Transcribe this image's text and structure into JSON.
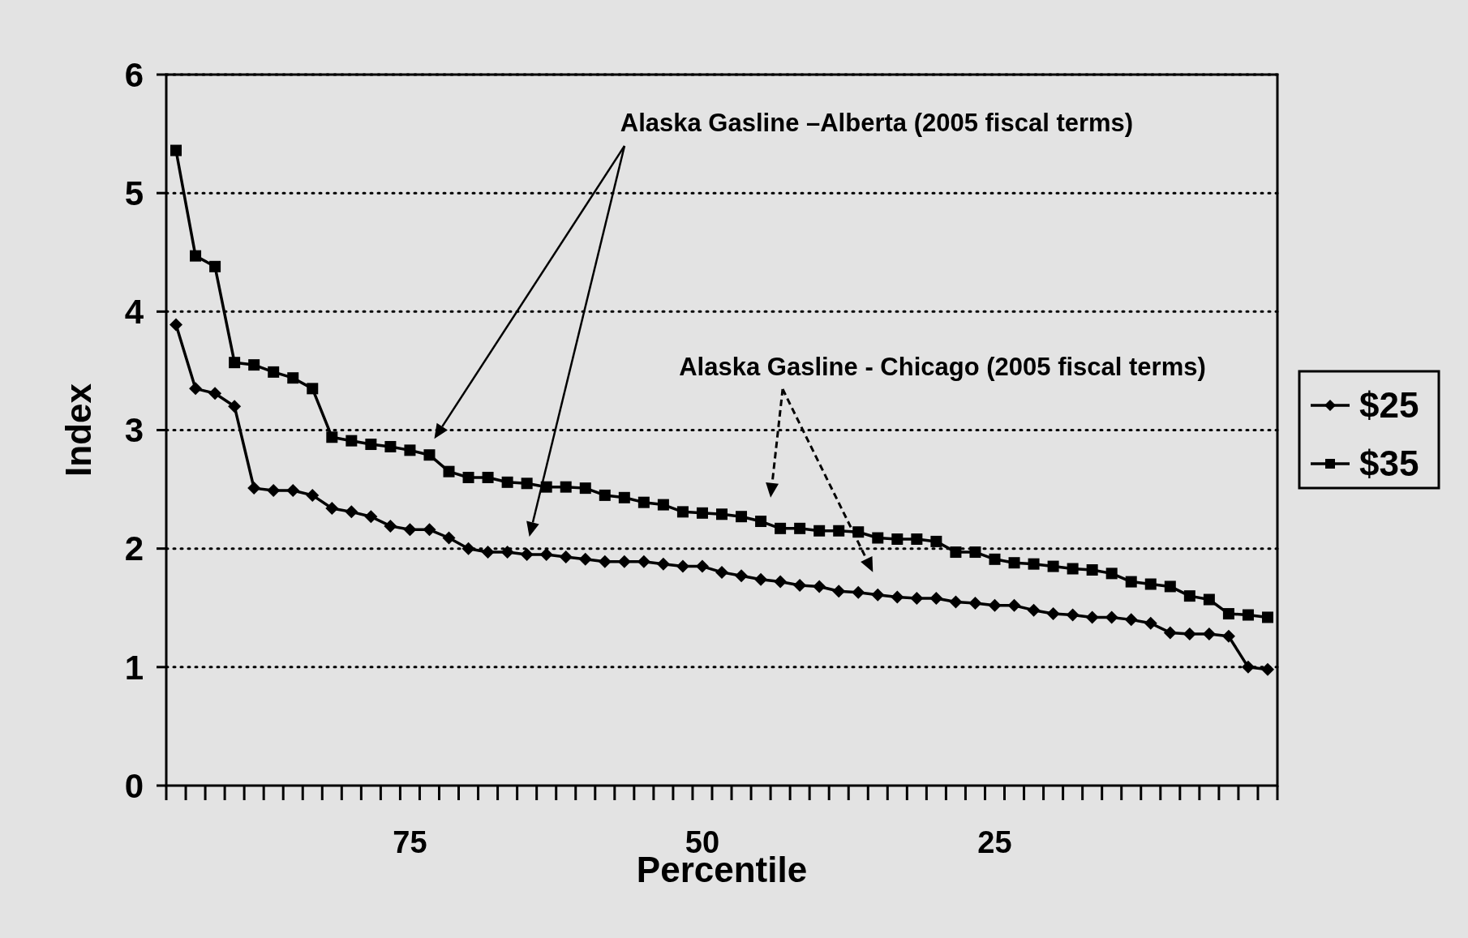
{
  "chart_data": {
    "type": "line",
    "xlabel": "Percentile",
    "ylabel": "Index",
    "categories": [
      null,
      null,
      null,
      null,
      null,
      null,
      null,
      null,
      null,
      null,
      null,
      null,
      "75",
      null,
      null,
      null,
      null,
      null,
      null,
      null,
      null,
      null,
      null,
      null,
      null,
      null,
      null,
      "50",
      null,
      null,
      null,
      null,
      null,
      null,
      null,
      null,
      null,
      null,
      null,
      null,
      null,
      null,
      "25",
      null,
      null,
      null,
      null,
      null,
      null,
      null,
      null,
      null,
      null,
      null,
      null,
      null,
      null
    ],
    "series": [
      {
        "name": "$25",
        "color": "#000000",
        "marker": "diamond",
        "values": [
          3.89,
          3.35,
          3.31,
          3.2,
          2.51,
          2.49,
          2.49,
          2.45,
          2.34,
          2.31,
          2.27,
          2.19,
          2.16,
          2.16,
          2.09,
          2.0,
          1.97,
          1.97,
          1.95,
          1.95,
          1.93,
          1.91,
          1.89,
          1.89,
          1.89,
          1.87,
          1.85,
          1.85,
          1.8,
          1.77,
          1.74,
          1.72,
          1.69,
          1.68,
          1.64,
          1.63,
          1.61,
          1.59,
          1.58,
          1.58,
          1.55,
          1.54,
          1.52,
          1.52,
          1.48,
          1.45,
          1.44,
          1.42,
          1.42,
          1.4,
          1.37,
          1.29,
          1.28,
          1.28,
          1.26,
          1.0,
          0.98
        ]
      },
      {
        "name": "$35",
        "color": "#000000",
        "marker": "square",
        "values": [
          5.36,
          4.47,
          4.38,
          3.57,
          3.55,
          3.49,
          3.44,
          3.35,
          2.94,
          2.91,
          2.88,
          2.86,
          2.83,
          2.79,
          2.65,
          2.6,
          2.6,
          2.56,
          2.55,
          2.52,
          2.52,
          2.51,
          2.45,
          2.43,
          2.39,
          2.37,
          2.31,
          2.3,
          2.29,
          2.27,
          2.23,
          2.17,
          2.17,
          2.15,
          2.15,
          2.14,
          2.09,
          2.08,
          2.08,
          2.06,
          1.97,
          1.97,
          1.91,
          1.88,
          1.87,
          1.85,
          1.83,
          1.82,
          1.79,
          1.72,
          1.7,
          1.68,
          1.6,
          1.57,
          1.45,
          1.44,
          1.42
        ]
      }
    ],
    "ylim": [
      0,
      6
    ],
    "yticks": [
      0,
      1,
      2,
      3,
      4,
      5,
      6
    ],
    "grid": "y",
    "legend": "right",
    "line_style": "solid",
    "annotations": [
      "Alaska Gasline –Alberta (2005 fiscal terms)",
      "Alaska Gasline - Chicago (2005 fiscal terms)"
    ]
  }
}
